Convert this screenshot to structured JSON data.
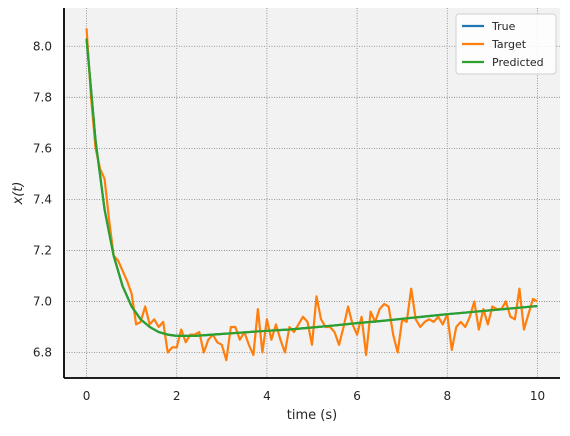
{
  "chart_data": {
    "type": "line",
    "title": "",
    "xlabel": "time (s)",
    "ylabel": "x(t)",
    "xlim": [
      -0.5,
      10.5
    ],
    "ylim": [
      6.7,
      8.15
    ],
    "xticks": [
      0,
      2,
      4,
      6,
      8,
      10
    ],
    "yticks": [
      6.8,
      7.0,
      7.2,
      7.4,
      7.6,
      7.8,
      8.0
    ],
    "grid": true,
    "legend_position": "top-right",
    "background_color": "#f2f2f2",
    "series": [
      {
        "name": "True",
        "color": "#1f77b4",
        "x": [
          0,
          0.2,
          0.4,
          0.6,
          0.8,
          1.0,
          1.2,
          1.4,
          1.6,
          1.8,
          2.0,
          2.4,
          2.8,
          3.2,
          3.6,
          4.0,
          4.5,
          5.0,
          5.5,
          6.0,
          6.5,
          7.0,
          7.5,
          8.0,
          8.5,
          9.0,
          9.5,
          10.0
        ],
        "y": [
          8.03,
          7.63,
          7.36,
          7.18,
          7.06,
          6.98,
          6.93,
          6.9,
          6.88,
          6.87,
          6.865,
          6.865,
          6.87,
          6.875,
          6.88,
          6.885,
          6.89,
          6.898,
          6.906,
          6.915,
          6.923,
          6.932,
          6.941,
          6.95,
          6.958,
          6.966,
          6.974,
          6.982
        ]
      },
      {
        "name": "Target",
        "color": "#ff7f0e",
        "x": [
          0,
          0.1,
          0.2,
          0.3,
          0.4,
          0.5,
          0.6,
          0.7,
          0.8,
          0.9,
          1.0,
          1.1,
          1.2,
          1.3,
          1.4,
          1.5,
          1.6,
          1.7,
          1.8,
          1.9,
          2.0,
          2.1,
          2.2,
          2.3,
          2.4,
          2.5,
          2.6,
          2.7,
          2.8,
          2.9,
          3.0,
          3.1,
          3.2,
          3.3,
          3.4,
          3.5,
          3.6,
          3.7,
          3.8,
          3.9,
          4.0,
          4.1,
          4.2,
          4.3,
          4.4,
          4.5,
          4.6,
          4.7,
          4.8,
          4.9,
          5.0,
          5.1,
          5.2,
          5.3,
          5.4,
          5.5,
          5.6,
          5.7,
          5.8,
          5.9,
          6.0,
          6.1,
          6.2,
          6.3,
          6.4,
          6.5,
          6.6,
          6.7,
          6.8,
          6.9,
          7.0,
          7.1,
          7.2,
          7.3,
          7.4,
          7.5,
          7.6,
          7.7,
          7.8,
          7.9,
          8.0,
          8.1,
          8.2,
          8.3,
          8.4,
          8.5,
          8.6,
          8.7,
          8.8,
          8.9,
          9.0,
          9.1,
          9.2,
          9.3,
          9.4,
          9.5,
          9.6,
          9.7,
          9.8,
          9.9,
          10.0
        ],
        "y": [
          8.07,
          7.8,
          7.6,
          7.52,
          7.48,
          7.32,
          7.18,
          7.16,
          7.12,
          7.08,
          7.03,
          6.91,
          6.92,
          6.98,
          6.91,
          6.93,
          6.9,
          6.92,
          6.8,
          6.82,
          6.82,
          6.89,
          6.84,
          6.87,
          6.87,
          6.88,
          6.8,
          6.85,
          6.87,
          6.84,
          6.83,
          6.77,
          6.9,
          6.9,
          6.85,
          6.88,
          6.83,
          6.79,
          6.97,
          6.8,
          6.93,
          6.85,
          6.91,
          6.85,
          6.8,
          6.9,
          6.88,
          6.91,
          6.94,
          6.92,
          6.83,
          7.02,
          6.93,
          6.9,
          6.9,
          6.88,
          6.83,
          6.9,
          6.98,
          6.91,
          6.87,
          6.94,
          6.79,
          6.96,
          6.92,
          6.97,
          6.99,
          6.98,
          6.87,
          6.8,
          6.93,
          6.92,
          7.05,
          6.93,
          6.9,
          6.92,
          6.93,
          6.92,
          6.94,
          6.91,
          6.95,
          6.81,
          6.9,
          6.92,
          6.9,
          6.94,
          7.0,
          6.89,
          6.97,
          6.91,
          6.98,
          6.97,
          6.97,
          7.0,
          6.94,
          6.93,
          7.05,
          6.89,
          6.95,
          7.01,
          7.0
        ]
      },
      {
        "name": "Predicted",
        "color": "#2ca02c",
        "x": [
          0,
          0.2,
          0.4,
          0.6,
          0.8,
          1.0,
          1.2,
          1.4,
          1.6,
          1.8,
          2.0,
          2.4,
          2.8,
          3.2,
          3.6,
          4.0,
          4.5,
          5.0,
          5.5,
          6.0,
          6.5,
          7.0,
          7.5,
          8.0,
          8.5,
          9.0,
          9.5,
          10.0
        ],
        "y": [
          8.03,
          7.63,
          7.36,
          7.18,
          7.06,
          6.98,
          6.93,
          6.9,
          6.88,
          6.87,
          6.865,
          6.865,
          6.87,
          6.875,
          6.88,
          6.885,
          6.89,
          6.898,
          6.906,
          6.915,
          6.923,
          6.932,
          6.941,
          6.95,
          6.958,
          6.966,
          6.974,
          6.982
        ]
      }
    ]
  }
}
